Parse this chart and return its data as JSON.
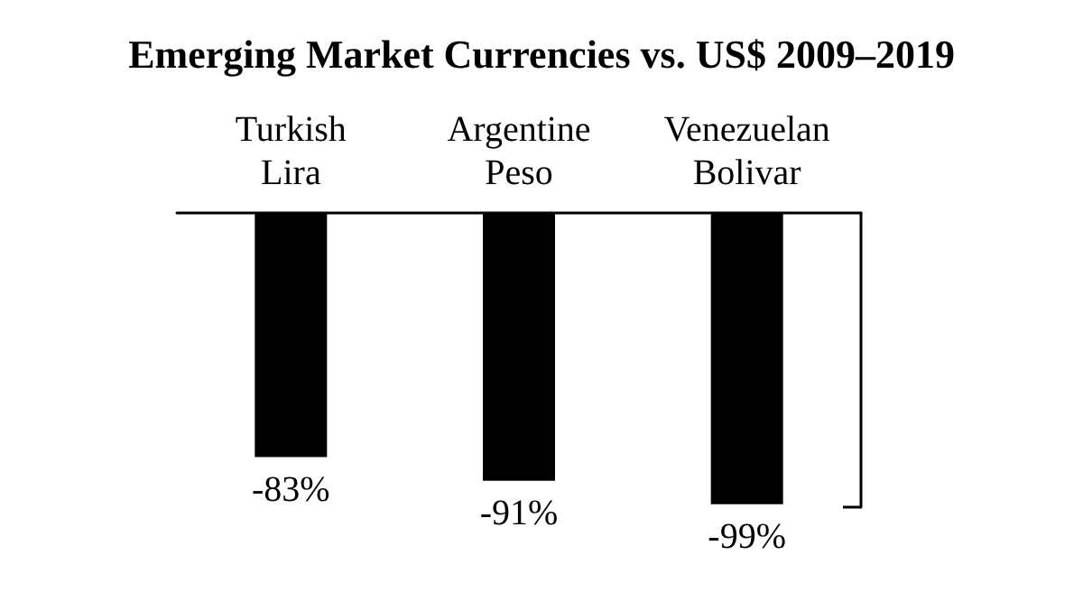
{
  "chart_data": {
    "type": "bar",
    "title": "Emerging Market Currencies vs. US$ 2009–2019",
    "categories": [
      "Turkish\nLira",
      "Argentine\nPeso",
      "Venezuelan\nBolivar"
    ],
    "values": [
      -83,
      -91,
      -99
    ],
    "color": "#000000",
    "value_labels": [
      "-83%",
      "-91%",
      "-99%"
    ],
    "ylim": [
      -100,
      0
    ],
    "yticks": [
      {
        "value": -100,
        "label": null
      }
    ],
    "tick_labels": "x",
    "grid": false
  }
}
